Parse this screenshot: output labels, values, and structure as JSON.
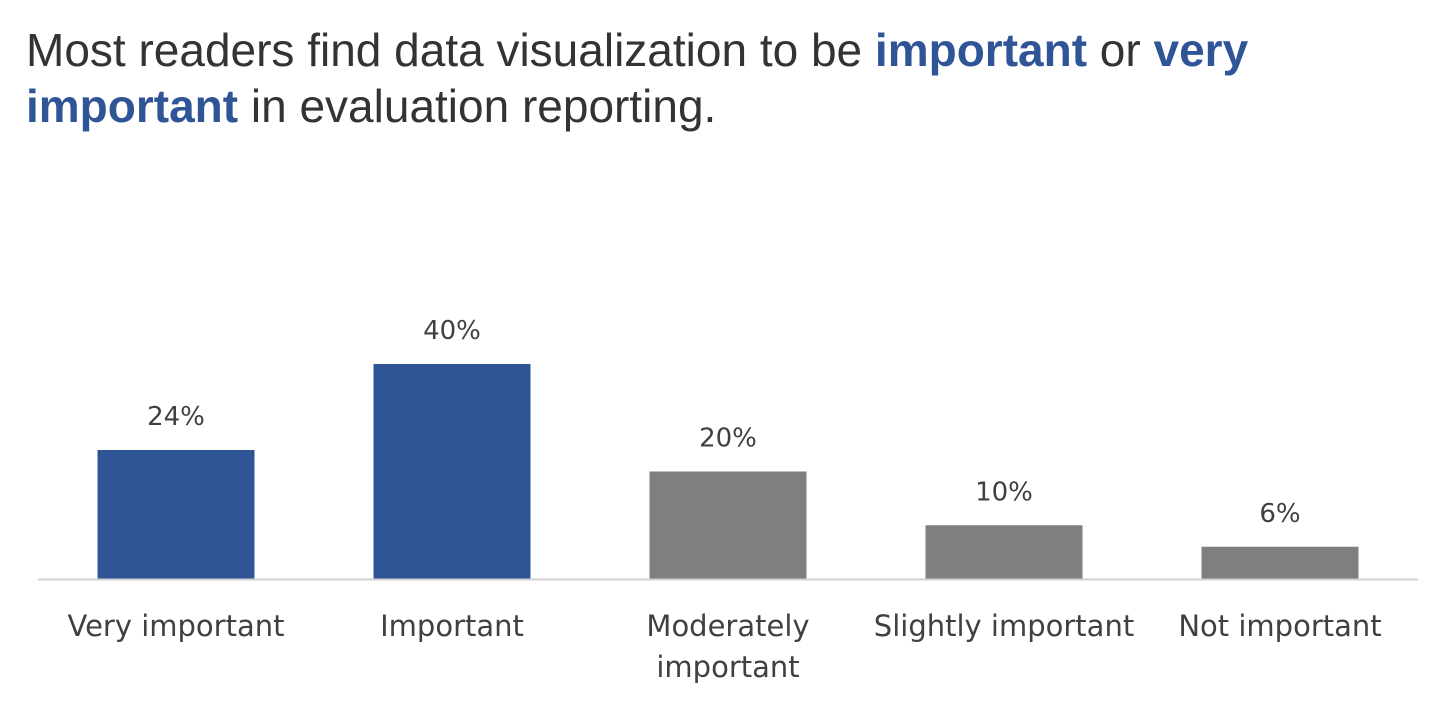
{
  "title": {
    "part1": "Most readers find data visualization to be ",
    "emph1": "important",
    "part2": " or ",
    "emph2": "very important",
    "part3": " in evaluation reporting."
  },
  "colors": {
    "highlight": "#2f5597",
    "muted": "#7f7f7f",
    "axis": "#d0d0d0",
    "text": "#404040"
  },
  "chart_data": {
    "type": "bar",
    "title": "Most readers find data visualization to be important or very important in evaluation reporting.",
    "categories": [
      "Very important",
      "Important",
      "Moderately important",
      "Slightly important",
      "Not important"
    ],
    "category_lines": [
      [
        "Very important"
      ],
      [
        "Important"
      ],
      [
        "Moderately",
        "important"
      ],
      [
        "Slightly important"
      ],
      [
        "Not important"
      ]
    ],
    "values": [
      24,
      40,
      20,
      10,
      6
    ],
    "value_labels": [
      "24%",
      "40%",
      "20%",
      "10%",
      "6%"
    ],
    "highlighted": [
      true,
      true,
      false,
      false,
      false
    ],
    "xlabel": "",
    "ylabel": "",
    "ylim": [
      0,
      40
    ],
    "grid": false,
    "legend": "none"
  }
}
